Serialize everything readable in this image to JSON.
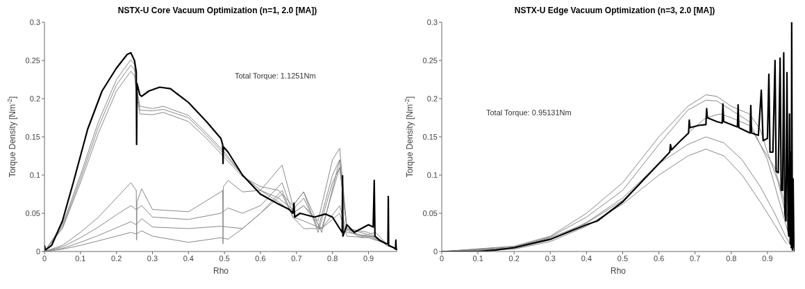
{
  "chart_data": [
    {
      "type": "line",
      "title": "NSTX-U Core Vacuum Optimization (n=1, 2.0 [MA])",
      "xlabel": "Rho",
      "ylabel": "Torque Density [Nm$^{-2}$]",
      "annotations": [
        "Total Torque: 1.1251Nm"
      ],
      "xlim": [
        0,
        0.98
      ],
      "ylim": [
        0,
        0.3
      ],
      "xticks": [
        0,
        0.1,
        0.2,
        0.3,
        0.4,
        0.5,
        0.6,
        0.7,
        0.8,
        0.9
      ],
      "yticks": [
        0,
        0.05,
        0.1,
        0.15,
        0.2,
        0.25,
        0.3
      ],
      "series": [
        {
          "color": "#888888",
          "x": [
            0,
            0.05,
            0.1,
            0.15,
            0.2,
            0.24,
            0.25,
            0.256,
            0.265,
            0.3,
            0.33,
            0.4,
            0.45,
            0.5,
            0.55,
            0.6,
            0.65,
            0.69,
            0.72,
            0.76,
            0.8,
            0.82,
            0.84,
            0.88,
            0.92,
            0.95,
            0.98
          ],
          "values": [
            0,
            0.035,
            0.1,
            0.17,
            0.225,
            0.251,
            0.245,
            0.215,
            0.19,
            0.187,
            0.19,
            0.178,
            0.155,
            0.13,
            0.1,
            0.08,
            0.065,
            0.05,
            0.06,
            0.04,
            0.12,
            0.135,
            0.03,
            0.02,
            0.025,
            0.01,
            0.003
          ]
        },
        {
          "color": "#888888",
          "x": [
            0,
            0.05,
            0.1,
            0.15,
            0.2,
            0.24,
            0.25,
            0.256,
            0.265,
            0.3,
            0.33,
            0.4,
            0.45,
            0.5,
            0.55,
            0.6,
            0.65,
            0.69,
            0.72,
            0.76,
            0.8,
            0.82,
            0.84,
            0.88,
            0.92,
            0.95,
            0.98
          ],
          "values": [
            0,
            0.032,
            0.095,
            0.163,
            0.218,
            0.244,
            0.238,
            0.21,
            0.185,
            0.184,
            0.186,
            0.175,
            0.152,
            0.127,
            0.1,
            0.08,
            0.07,
            0.055,
            0.07,
            0.03,
            0.1,
            0.12,
            0.028,
            0.018,
            0.02,
            0.008,
            0.003
          ]
        },
        {
          "color": "#888888",
          "x": [
            0,
            0.05,
            0.1,
            0.15,
            0.2,
            0.24,
            0.25,
            0.256,
            0.265,
            0.3,
            0.33,
            0.4,
            0.45,
            0.5,
            0.55,
            0.6,
            0.65,
            0.69,
            0.72,
            0.76,
            0.8,
            0.82,
            0.84,
            0.88,
            0.92,
            0.95,
            0.98
          ],
          "values": [
            0,
            0.03,
            0.09,
            0.155,
            0.21,
            0.236,
            0.23,
            0.205,
            0.18,
            0.179,
            0.182,
            0.17,
            0.148,
            0.123,
            0.098,
            0.085,
            0.08,
            0.06,
            0.078,
            0.025,
            0.09,
            0.11,
            0.03,
            0.02,
            0.02,
            0.008,
            0.003
          ]
        },
        {
          "color": "#888888",
          "x": [
            0,
            0.05,
            0.1,
            0.15,
            0.2,
            0.24,
            0.255,
            0.256,
            0.257,
            0.27,
            0.3,
            0.4,
            0.49,
            0.495,
            0.496,
            0.497,
            0.51,
            0.55,
            0.6,
            0.66,
            0.69,
            0.72,
            0.77,
            0.82,
            0.84,
            0.9,
            0.95,
            0.98
          ],
          "values": [
            0,
            0.008,
            0.025,
            0.045,
            0.07,
            0.09,
            0.08,
            0.015,
            0.065,
            0.082,
            0.055,
            0.052,
            0.078,
            0.08,
            0.01,
            0.085,
            0.093,
            0.078,
            0.08,
            0.113,
            0.06,
            0.078,
            0.025,
            0.12,
            0.03,
            0.025,
            0.01,
            0.003
          ]
        },
        {
          "color": "#888888",
          "x": [
            0,
            0.05,
            0.1,
            0.15,
            0.2,
            0.24,
            0.255,
            0.27,
            0.3,
            0.4,
            0.49,
            0.51,
            0.55,
            0.6,
            0.66,
            0.69,
            0.72,
            0.77,
            0.82,
            0.84,
            0.9,
            0.95,
            0.98
          ],
          "values": [
            0,
            0.006,
            0.018,
            0.032,
            0.048,
            0.06,
            0.055,
            0.06,
            0.045,
            0.042,
            0.05,
            0.057,
            0.05,
            0.06,
            0.09,
            0.05,
            0.06,
            0.03,
            0.11,
            0.03,
            0.022,
            0.01,
            0.003
          ]
        },
        {
          "color": "#888888",
          "x": [
            0,
            0.05,
            0.1,
            0.15,
            0.2,
            0.24,
            0.255,
            0.27,
            0.3,
            0.4,
            0.49,
            0.51,
            0.55,
            0.6,
            0.66,
            0.69,
            0.72,
            0.77,
            0.82,
            0.84,
            0.9,
            0.95,
            0.98
          ],
          "values": [
            0,
            0.004,
            0.012,
            0.021,
            0.031,
            0.039,
            0.035,
            0.043,
            0.032,
            0.03,
            0.033,
            0.032,
            0.03,
            0.05,
            0.08,
            0.045,
            0.04,
            0.03,
            0.06,
            0.025,
            0.02,
            0.01,
            0.003
          ]
        },
        {
          "color": "#888888",
          "x": [
            0,
            0.05,
            0.1,
            0.15,
            0.2,
            0.24,
            0.255,
            0.27,
            0.3,
            0.4,
            0.49,
            0.51,
            0.55,
            0.6,
            0.66,
            0.69,
            0.72,
            0.77,
            0.82,
            0.84,
            0.9,
            0.95,
            0.98
          ],
          "values": [
            0,
            0.003,
            0.008,
            0.014,
            0.02,
            0.025,
            0.023,
            0.027,
            0.02,
            0.012,
            0.018,
            0.016,
            0.03,
            0.05,
            0.075,
            0.045,
            0.03,
            0.03,
            0.05,
            0.02,
            0.018,
            0.01,
            0.003
          ]
        },
        {
          "color": "#000000",
          "x": [
            0,
            0.003,
            0.02,
            0.05,
            0.08,
            0.12,
            0.16,
            0.2,
            0.23,
            0.24,
            0.25,
            0.255,
            0.256,
            0.257,
            0.265,
            0.27,
            0.29,
            0.32,
            0.35,
            0.4,
            0.45,
            0.49,
            0.495,
            0.496,
            0.497,
            0.51,
            0.55,
            0.6,
            0.65,
            0.68,
            0.69,
            0.693,
            0.695,
            0.71,
            0.75,
            0.78,
            0.8,
            0.82,
            0.827,
            0.828,
            0.829,
            0.84,
            0.86,
            0.9,
            0.913,
            0.916,
            0.918,
            0.93,
            0.95,
            0.954,
            0.955,
            0.956,
            0.97,
            0.975,
            0.976,
            0.977,
            0.98
          ],
          "values": [
            0.008,
            0.002,
            0.008,
            0.04,
            0.09,
            0.16,
            0.21,
            0.24,
            0.258,
            0.26,
            0.25,
            0.235,
            0.14,
            0.22,
            0.205,
            0.203,
            0.21,
            0.215,
            0.213,
            0.195,
            0.17,
            0.148,
            0.14,
            0.115,
            0.137,
            0.13,
            0.1,
            0.075,
            0.062,
            0.055,
            0.05,
            0.063,
            0.045,
            0.05,
            0.045,
            0.049,
            0.045,
            0.03,
            0.025,
            0.099,
            0.02,
            0.035,
            0.025,
            0.035,
            0.032,
            0.093,
            0.02,
            0.015,
            0.01,
            0.01,
            0.072,
            0.008,
            0.005,
            0.003,
            0.015,
            0.003,
            0.002
          ]
        }
      ]
    },
    {
      "type": "line",
      "title": "NSTX-U Edge Vacuum Optimization (n=3, 2.0 [MA])",
      "xlabel": "Rho",
      "ylabel": "Torque Density [Nm$^{-2}$]",
      "annotations": [
        "Total Torque: 0.95131Nm"
      ],
      "xlim": [
        0,
        0.975
      ],
      "ylim": [
        0,
        0.3
      ],
      "xticks": [
        0,
        0.1,
        0.2,
        0.3,
        0.4,
        0.5,
        0.6,
        0.7,
        0.8,
        0.9
      ],
      "yticks": [
        0,
        0.05,
        0.1,
        0.15,
        0.2,
        0.25,
        0.3
      ],
      "series": [
        {
          "color": "#888888",
          "x": [
            0,
            0.2,
            0.3,
            0.4,
            0.5,
            0.6,
            0.68,
            0.73,
            0.76,
            0.8,
            0.85,
            0.88,
            0.9,
            0.93,
            0.95,
            0.97,
            0.975
          ],
          "values": [
            0,
            0.007,
            0.02,
            0.05,
            0.09,
            0.15,
            0.19,
            0.205,
            0.203,
            0.19,
            0.18,
            0.16,
            0.13,
            0.09,
            0.05,
            0.01,
            0.002
          ]
        },
        {
          "color": "#888888",
          "x": [
            0,
            0.2,
            0.3,
            0.4,
            0.5,
            0.6,
            0.68,
            0.73,
            0.76,
            0.8,
            0.85,
            0.9,
            0.93,
            0.96
          ],
          "values": [
            0,
            0.006,
            0.019,
            0.045,
            0.08,
            0.14,
            0.185,
            0.198,
            0.197,
            0.185,
            0.17,
            0.12,
            0.07,
            0.02
          ]
        },
        {
          "color": "#888888",
          "x": [
            0,
            0.2,
            0.3,
            0.4,
            0.5,
            0.6,
            0.68,
            0.73,
            0.77,
            0.8,
            0.85,
            0.88,
            0.92,
            0.95,
            0.97
          ],
          "values": [
            0,
            0.005,
            0.018,
            0.037,
            0.067,
            0.115,
            0.155,
            0.175,
            0.18,
            0.175,
            0.165,
            0.14,
            0.11,
            0.06,
            0.01
          ]
        },
        {
          "color": "#888888",
          "x": [
            0,
            0.2,
            0.3,
            0.4,
            0.5,
            0.6,
            0.68,
            0.73,
            0.78,
            0.83,
            0.88,
            0.92,
            0.95,
            0.97
          ],
          "values": [
            0,
            0.004,
            0.015,
            0.038,
            0.07,
            0.115,
            0.14,
            0.15,
            0.142,
            0.12,
            0.085,
            0.05,
            0.02,
            0.003
          ]
        },
        {
          "color": "#888888",
          "x": [
            0,
            0.2,
            0.3,
            0.4,
            0.5,
            0.6,
            0.68,
            0.73,
            0.78,
            0.83,
            0.88,
            0.92,
            0.95,
            0.955
          ],
          "values": [
            0,
            0.003,
            0.013,
            0.033,
            0.062,
            0.1,
            0.125,
            0.134,
            0.125,
            0.1,
            0.065,
            0.035,
            0.012,
            0.01
          ]
        },
        {
          "color": "#000000",
          "x": [
            0,
            0.1,
            0.15,
            0.2,
            0.3,
            0.4,
            0.43,
            0.5,
            0.57,
            0.63,
            0.632,
            0.635,
            0.66,
            0.682,
            0.684,
            0.686,
            0.71,
            0.73,
            0.732,
            0.734,
            0.76,
            0.775,
            0.777,
            0.779,
            0.817,
            0.819,
            0.821,
            0.852,
            0.854,
            0.856,
            0.875,
            0.883,
            0.888,
            0.9,
            0.904,
            0.907,
            0.915,
            0.921,
            0.924,
            0.93,
            0.935,
            0.938,
            0.942,
            0.945,
            0.948,
            0.951,
            0.954,
            0.957,
            0.959,
            0.961,
            0.963,
            0.964,
            0.966,
            0.967,
            0.969,
            0.971,
            0.973,
            0.975
          ],
          "values": [
            0,
            0,
            0.002,
            0.005,
            0.016,
            0.035,
            0.04,
            0.065,
            0.1,
            0.13,
            0.14,
            0.133,
            0.145,
            0.155,
            0.172,
            0.162,
            0.165,
            0.166,
            0.187,
            0.175,
            0.17,
            0.168,
            0.193,
            0.17,
            0.163,
            0.192,
            0.162,
            0.155,
            0.191,
            0.155,
            0.152,
            0.211,
            0.145,
            0.148,
            0.232,
            0.13,
            0.13,
            0.25,
            0.105,
            0.103,
            0.253,
            0.08,
            0.08,
            0.26,
            0.05,
            0.04,
            0.234,
            0.03,
            0.02,
            0.18,
            0.01,
            0.13,
            0.005,
            0.3,
            0.002,
            0.095,
            0.01,
            0
          ]
        }
      ]
    }
  ]
}
